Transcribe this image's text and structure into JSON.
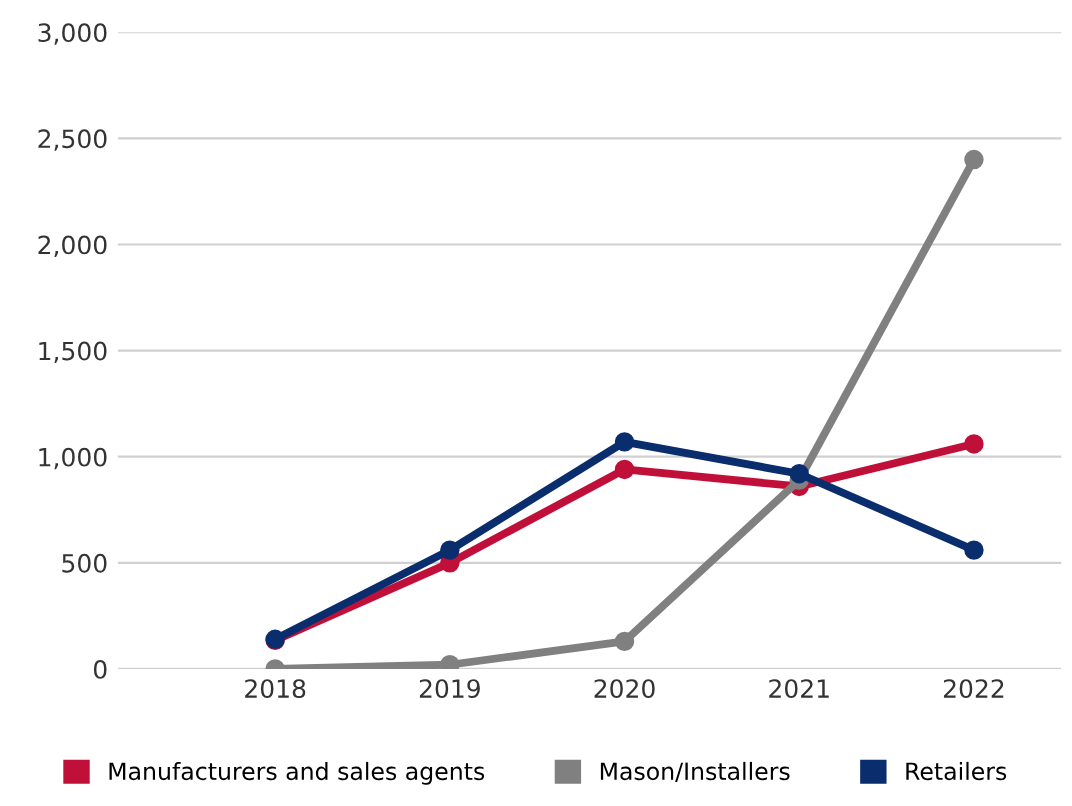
{
  "chart_data": {
    "type": "line",
    "categories": [
      "2018",
      "2019",
      "2020",
      "2021",
      "2022"
    ],
    "series": [
      {
        "name": "Manufacturers and sales agents",
        "color": "#c0103a",
        "values": [
          135,
          500,
          940,
          860,
          1060
        ]
      },
      {
        "name": "Mason/Installers",
        "color": "#808080",
        "values": [
          0,
          20,
          130,
          890,
          2400
        ]
      },
      {
        "name": "Retailers",
        "color": "#0a2d6e",
        "values": [
          140,
          560,
          1070,
          920,
          560
        ]
      }
    ],
    "ylim": [
      0,
      3000
    ],
    "yticks": [
      {
        "value": 0,
        "label": "0"
      },
      {
        "value": 500,
        "label": "500"
      },
      {
        "value": 1000,
        "label": "1,000"
      },
      {
        "value": 1500,
        "label": "1,500"
      },
      {
        "value": 2000,
        "label": "2,000"
      },
      {
        "value": 2500,
        "label": "2,500"
      },
      {
        "value": 3000,
        "label": "3,000"
      }
    ],
    "grid": "y",
    "legend": "bottom",
    "marker": "circle",
    "line_style": "solid"
  }
}
